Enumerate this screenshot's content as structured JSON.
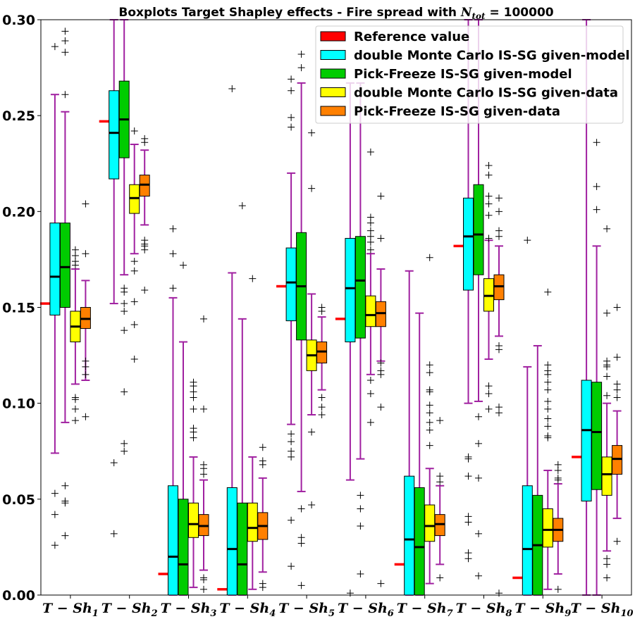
{
  "chart_data": {
    "type": "boxplot",
    "title": "Boxplots Target Shapley effects - Fire spread with N_tot = 100000",
    "title_parts": {
      "main": "Boxplots Target Shapley effects - Fire spread with ",
      "symbol": "N",
      "subscript": "tot",
      "rest": " = 100000"
    },
    "ylim": [
      0.0,
      0.3
    ],
    "yticks": [
      "0.00",
      "0.05",
      "0.10",
      "0.15",
      "0.20",
      "0.25",
      "0.30"
    ],
    "ytick_values": [
      0.0,
      0.05,
      0.1,
      0.15,
      0.2,
      0.25,
      0.3
    ],
    "categories": [
      {
        "label": "T − Sh",
        "sub": "1"
      },
      {
        "label": "T − Sh",
        "sub": "2"
      },
      {
        "label": "T − Sh",
        "sub": "3"
      },
      {
        "label": "T − Sh",
        "sub": "4"
      },
      {
        "label": "T − Sh",
        "sub": "5"
      },
      {
        "label": "T − Sh",
        "sub": "6"
      },
      {
        "label": "T − Sh",
        "sub": "7"
      },
      {
        "label": "T − Sh",
        "sub": "8"
      },
      {
        "label": "T − Sh",
        "sub": "9"
      },
      {
        "label": "T − Sh",
        "sub": "10"
      }
    ],
    "legend": {
      "placement": "top-right",
      "entries": [
        {
          "label": "Reference value",
          "color": "#ff0000"
        },
        {
          "label": "double Monte Carlo IS-SG given-model",
          "color": "#00ffff"
        },
        {
          "label": "Pick-Freeze IS-SG given-model",
          "color": "#00cc00"
        },
        {
          "label": "double Monte Carlo IS-SG given-data",
          "color": "#ffff00"
        },
        {
          "label": "Pick-Freeze IS-SG given-data",
          "color": "#ff8000"
        }
      ]
    },
    "whisker_color": "#a020a0",
    "median_color": "#000000",
    "reference_values": [
      0.152,
      0.247,
      0.011,
      0.003,
      0.161,
      0.144,
      0.016,
      0.182,
      0.009,
      0.072
    ],
    "series": [
      {
        "name": "double Monte Carlo IS-SG given-model",
        "color": "#00ffff",
        "boxes": [
          {
            "whislo": 0.074,
            "q1": 0.146,
            "med": 0.166,
            "q3": 0.194,
            "whishi": 0.261,
            "fliers": [
              0.286,
              0.053,
              0.042,
              0.026
            ]
          },
          {
            "whislo": 0.152,
            "q1": 0.217,
            "med": 0.241,
            "q3": 0.263,
            "whishi": 0.3,
            "fliers": [
              0.069,
              0.032
            ]
          },
          {
            "whislo": 0.0,
            "q1": 0.0,
            "med": 0.02,
            "q3": 0.057,
            "whishi": 0.155,
            "fliers": [
              0.191,
              0.178,
              0.16
            ]
          },
          {
            "whislo": 0.0,
            "q1": 0.0,
            "med": 0.024,
            "q3": 0.056,
            "whishi": 0.168,
            "fliers": [
              0.264
            ]
          },
          {
            "whislo": 0.089,
            "q1": 0.143,
            "med": 0.163,
            "q3": 0.181,
            "whishi": 0.22,
            "fliers": [
              0.269,
              0.263,
              0.249,
              0.244,
              0.084,
              0.08,
              0.075,
              0.072,
              0.039,
              0.015
            ]
          },
          {
            "whislo": 0.06,
            "q1": 0.132,
            "med": 0.16,
            "q3": 0.186,
            "whishi": 0.267,
            "fliers": [
              0.001
            ]
          },
          {
            "whislo": 0.0,
            "q1": 0.0,
            "med": 0.029,
            "q3": 0.062,
            "whishi": 0.169,
            "fliers": []
          },
          {
            "whislo": 0.1,
            "q1": 0.159,
            "med": 0.187,
            "q3": 0.207,
            "whishi": 0.3,
            "fliers": [
              0.072,
              0.071,
              0.062,
              0.041,
              0.038,
              0.022,
              0.019
            ]
          },
          {
            "whislo": 0.0,
            "q1": 0.0,
            "med": 0.024,
            "q3": 0.057,
            "whishi": 0.119,
            "fliers": [
              0.185
            ]
          },
          {
            "whislo": 0.0,
            "q1": 0.049,
            "med": 0.086,
            "q3": 0.112,
            "whishi": 0.3,
            "fliers": []
          }
        ]
      },
      {
        "name": "Pick-Freeze IS-SG given-model",
        "color": "#00cc00",
        "boxes": [
          {
            "whislo": 0.09,
            "q1": 0.15,
            "med": 0.171,
            "q3": 0.194,
            "whishi": 0.252,
            "fliers": [
              0.294,
              0.289,
              0.283,
              0.261,
              0.057,
              0.049,
              0.048,
              0.031
            ]
          },
          {
            "whislo": 0.167,
            "q1": 0.228,
            "med": 0.248,
            "q3": 0.268,
            "whishi": 0.3,
            "fliers": [
              0.16,
              0.158,
              0.152,
              0.148,
              0.138,
              0.106,
              0.079,
              0.075
            ]
          },
          {
            "whislo": 0.0,
            "q1": 0.0,
            "med": 0.016,
            "q3": 0.05,
            "whishi": 0.132,
            "fliers": [
              0.172
            ]
          },
          {
            "whislo": 0.0,
            "q1": 0.0,
            "med": 0.016,
            "q3": 0.048,
            "whishi": 0.144,
            "fliers": [
              0.203
            ]
          },
          {
            "whislo": 0.054,
            "q1": 0.133,
            "med": 0.161,
            "q3": 0.189,
            "whishi": 0.267,
            "fliers": [
              0.282,
              0.275,
              0.045,
              0.03,
              0.027,
              0.005
            ]
          },
          {
            "whislo": 0.071,
            "q1": 0.134,
            "med": 0.164,
            "q3": 0.187,
            "whishi": 0.267,
            "fliers": [
              0.052,
              0.045,
              0.036,
              0.011
            ]
          },
          {
            "whislo": 0.0,
            "q1": 0.0,
            "med": 0.025,
            "q3": 0.056,
            "whishi": 0.147,
            "fliers": []
          },
          {
            "whislo": 0.101,
            "q1": 0.167,
            "med": 0.188,
            "q3": 0.214,
            "whishi": 0.3,
            "fliers": [
              0.093,
              0.079,
              0.061,
              0.032,
              0.01
            ]
          },
          {
            "whislo": 0.0,
            "q1": 0.0,
            "med": 0.026,
            "q3": 0.052,
            "whishi": 0.13,
            "fliers": []
          },
          {
            "whislo": 0.0,
            "q1": 0.055,
            "med": 0.085,
            "q3": 0.111,
            "whishi": 0.182,
            "fliers": [
              0.236,
              0.213,
              0.201
            ]
          }
        ]
      },
      {
        "name": "double Monte Carlo IS-SG given-data",
        "color": "#ffff00",
        "boxes": [
          {
            "whislo": 0.11,
            "q1": 0.132,
            "med": 0.14,
            "q3": 0.148,
            "whishi": 0.17,
            "fliers": [
              0.18,
              0.177,
              0.174,
              0.172,
              0.103,
              0.102,
              0.097,
              0.091
            ]
          },
          {
            "whislo": 0.178,
            "q1": 0.199,
            "med": 0.207,
            "q3": 0.214,
            "whishi": 0.235,
            "fliers": [
              0.242,
              0.174,
              0.169,
              0.153,
              0.141,
              0.123
            ]
          },
          {
            "whislo": 0.004,
            "q1": 0.03,
            "med": 0.037,
            "q3": 0.048,
            "whishi": 0.072,
            "fliers": [
              0.111,
              0.109,
              0.106,
              0.103,
              0.097,
              0.087,
              0.085,
              0.082
            ]
          },
          {
            "whislo": 0.003,
            "q1": 0.028,
            "med": 0.035,
            "q3": 0.048,
            "whishi": 0.072,
            "fliers": [
              0.165
            ]
          },
          {
            "whislo": 0.094,
            "q1": 0.117,
            "med": 0.125,
            "q3": 0.133,
            "whishi": 0.157,
            "fliers": [
              0.241,
              0.212,
              0.085,
              0.047
            ]
          },
          {
            "whislo": 0.115,
            "q1": 0.14,
            "med": 0.146,
            "q3": 0.156,
            "whishi": 0.178,
            "fliers": [
              0.231,
              0.197,
              0.194,
              0.19,
              0.187,
              0.184,
              0.18,
              0.112,
              0.105,
              0.09
            ]
          },
          {
            "whislo": 0.006,
            "q1": 0.028,
            "med": 0.036,
            "q3": 0.047,
            "whishi": 0.066,
            "fliers": [
              0.176,
              0.12,
              0.116,
              0.107,
              0.106,
              0.099,
              0.095,
              0.09,
              0.086,
              0.078
            ]
          },
          {
            "whislo": 0.123,
            "q1": 0.148,
            "med": 0.156,
            "q3": 0.165,
            "whishi": 0.185,
            "fliers": [
              0.224,
              0.219,
              0.208,
              0.204,
              0.198,
              0.186,
              0.109,
              0.105,
              0.097
            ]
          },
          {
            "whislo": 0.003,
            "q1": 0.025,
            "med": 0.034,
            "q3": 0.045,
            "whishi": 0.065,
            "fliers": [
              0.158,
              0.12,
              0.117,
              0.115,
              0.111,
              0.107,
              0.101,
              0.097,
              0.092,
              0.088,
              0.083,
              0.082
            ]
          },
          {
            "whislo": 0.023,
            "q1": 0.052,
            "med": 0.063,
            "q3": 0.072,
            "whishi": 0.1,
            "fliers": [
              0.191,
              0.147,
              0.122,
              0.12,
              0.119,
              0.114,
              0.104,
              0.019,
              0.016,
              0.009
            ]
          }
        ]
      },
      {
        "name": "Pick-Freeze IS-SG given-data",
        "color": "#ff8000",
        "boxes": [
          {
            "whislo": 0.112,
            "q1": 0.139,
            "med": 0.144,
            "q3": 0.15,
            "whishi": 0.164,
            "fliers": [
              0.204,
              0.178,
              0.122,
              0.119,
              0.115,
              0.093
            ]
          },
          {
            "whislo": 0.193,
            "q1": 0.208,
            "med": 0.214,
            "q3": 0.219,
            "whishi": 0.232,
            "fliers": [
              0.238,
              0.236,
              0.185,
              0.183,
              0.182,
              0.18,
              0.159
            ]
          },
          {
            "whislo": 0.013,
            "q1": 0.031,
            "med": 0.036,
            "q3": 0.042,
            "whishi": 0.06,
            "fliers": [
              0.144,
              0.097,
              0.068,
              0.066,
              0.063,
              0.009,
              0.008,
              0.003
            ]
          },
          {
            "whislo": 0.012,
            "q1": 0.029,
            "med": 0.036,
            "q3": 0.043,
            "whishi": 0.061,
            "fliers": [
              0.077,
              0.07,
              0.068,
              0.006,
              0.004
            ]
          },
          {
            "whislo": 0.107,
            "q1": 0.121,
            "med": 0.127,
            "q3": 0.132,
            "whishi": 0.145,
            "fliers": [
              0.15,
              0.148,
              0.103,
              0.098,
              0.094
            ]
          },
          {
            "whislo": 0.122,
            "q1": 0.14,
            "med": 0.147,
            "q3": 0.153,
            "whishi": 0.17,
            "fliers": [
              0.208,
              0.186,
              0.121,
              0.117,
              0.115,
              0.098,
              0.006
            ]
          },
          {
            "whislo": 0.016,
            "q1": 0.031,
            "med": 0.037,
            "q3": 0.042,
            "whishi": 0.057,
            "fliers": [
              0.062,
              0.059,
              0.091,
              0.009
            ]
          },
          {
            "whislo": 0.135,
            "q1": 0.154,
            "med": 0.161,
            "q3": 0.167,
            "whishi": 0.182,
            "fliers": [
              0.207,
              0.2,
              0.19,
              0.187,
              0.13,
              0.128,
              0.098,
              0.095,
              0.001
            ]
          },
          {
            "whislo": 0.011,
            "q1": 0.028,
            "med": 0.034,
            "q3": 0.04,
            "whishi": 0.058,
            "fliers": [
              0.068,
              0.065,
              0.061,
              0.06,
              0.003
            ]
          },
          {
            "whislo": 0.04,
            "q1": 0.063,
            "med": 0.071,
            "q3": 0.078,
            "whishi": 0.096,
            "fliers": [
              0.15,
              0.124,
              0.11,
              0.107,
              0.103,
              0.028
            ]
          }
        ]
      }
    ]
  }
}
